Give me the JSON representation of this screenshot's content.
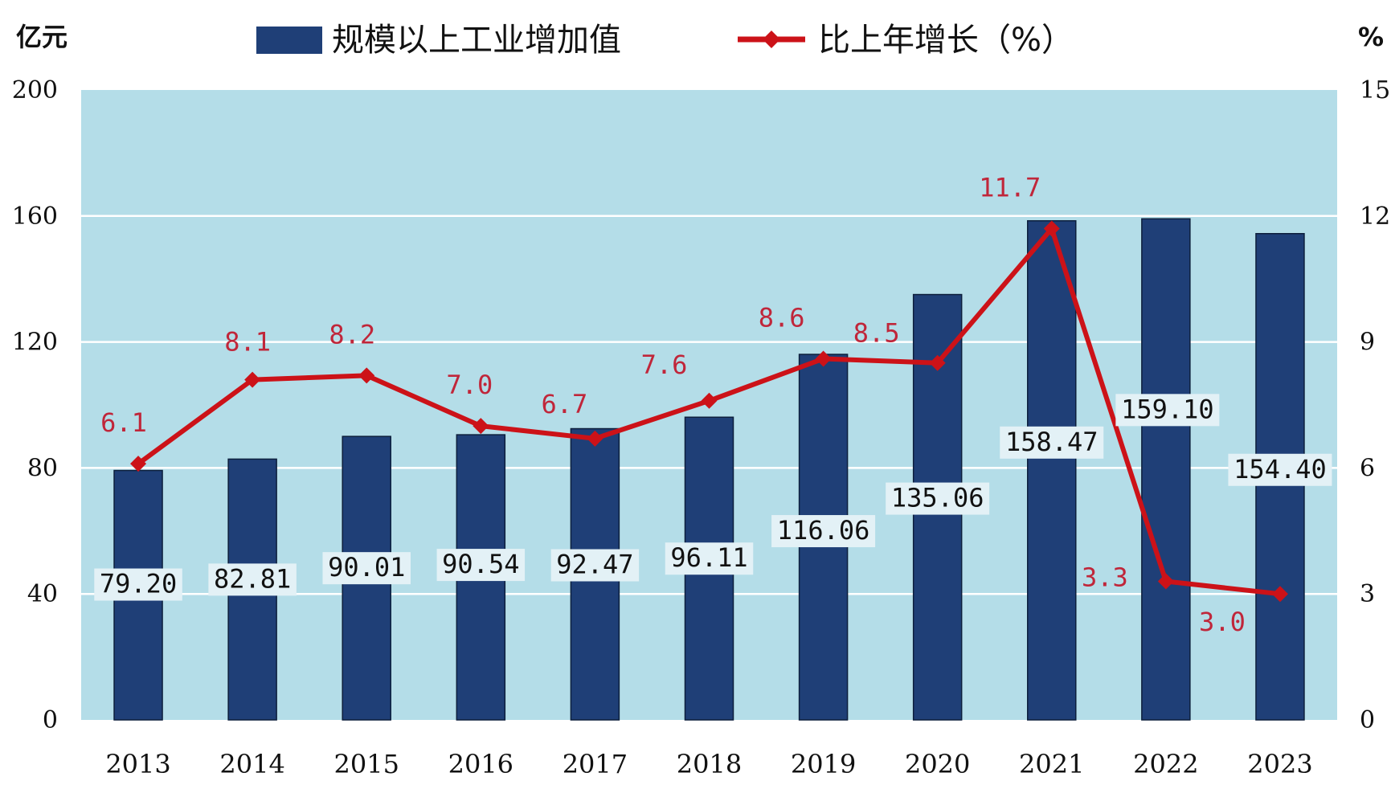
{
  "chart_data": {
    "type": "bar",
    "categories": [
      "2013",
      "2014",
      "2015",
      "2016",
      "2017",
      "2018",
      "2019",
      "2020",
      "2021",
      "2022",
      "2023"
    ],
    "series": [
      {
        "name": "规模以上工业增加值",
        "type": "bar",
        "axis": "left",
        "color": "#1f3f77",
        "values": [
          79.2,
          82.81,
          90.01,
          90.54,
          92.47,
          96.11,
          116.06,
          135.06,
          158.47,
          159.1,
          154.4
        ],
        "labels": [
          "79.20",
          "82.81",
          "90.01",
          "90.54",
          "92.47",
          "96.11",
          "116.06",
          "135.06",
          "158.47",
          "159.10",
          "154.40"
        ]
      },
      {
        "name": "比上年增长（%）",
        "type": "line",
        "axis": "right",
        "color": "#cc1218",
        "values": [
          6.1,
          8.1,
          8.2,
          7.0,
          6.7,
          7.6,
          8.6,
          8.5,
          11.7,
          3.3,
          3.0
        ],
        "labels": [
          "6.1",
          "8.1",
          "8.2",
          "7.0",
          "6.7",
          "7.6",
          "8.6",
          "8.5",
          "11.7",
          "3.3",
          "3.0"
        ]
      }
    ],
    "left_axis": {
      "unit": "亿元",
      "ylim": [
        0,
        200
      ],
      "ticks": [
        "0",
        "40",
        "80",
        "120",
        "160",
        "200"
      ]
    },
    "right_axis": {
      "unit": "%",
      "ylim": [
        0,
        15
      ],
      "ticks": [
        "0",
        "3",
        "6",
        "9",
        "12",
        "15"
      ]
    },
    "grid": true,
    "plot_background": "#b4dde8",
    "legend": "top-center"
  }
}
